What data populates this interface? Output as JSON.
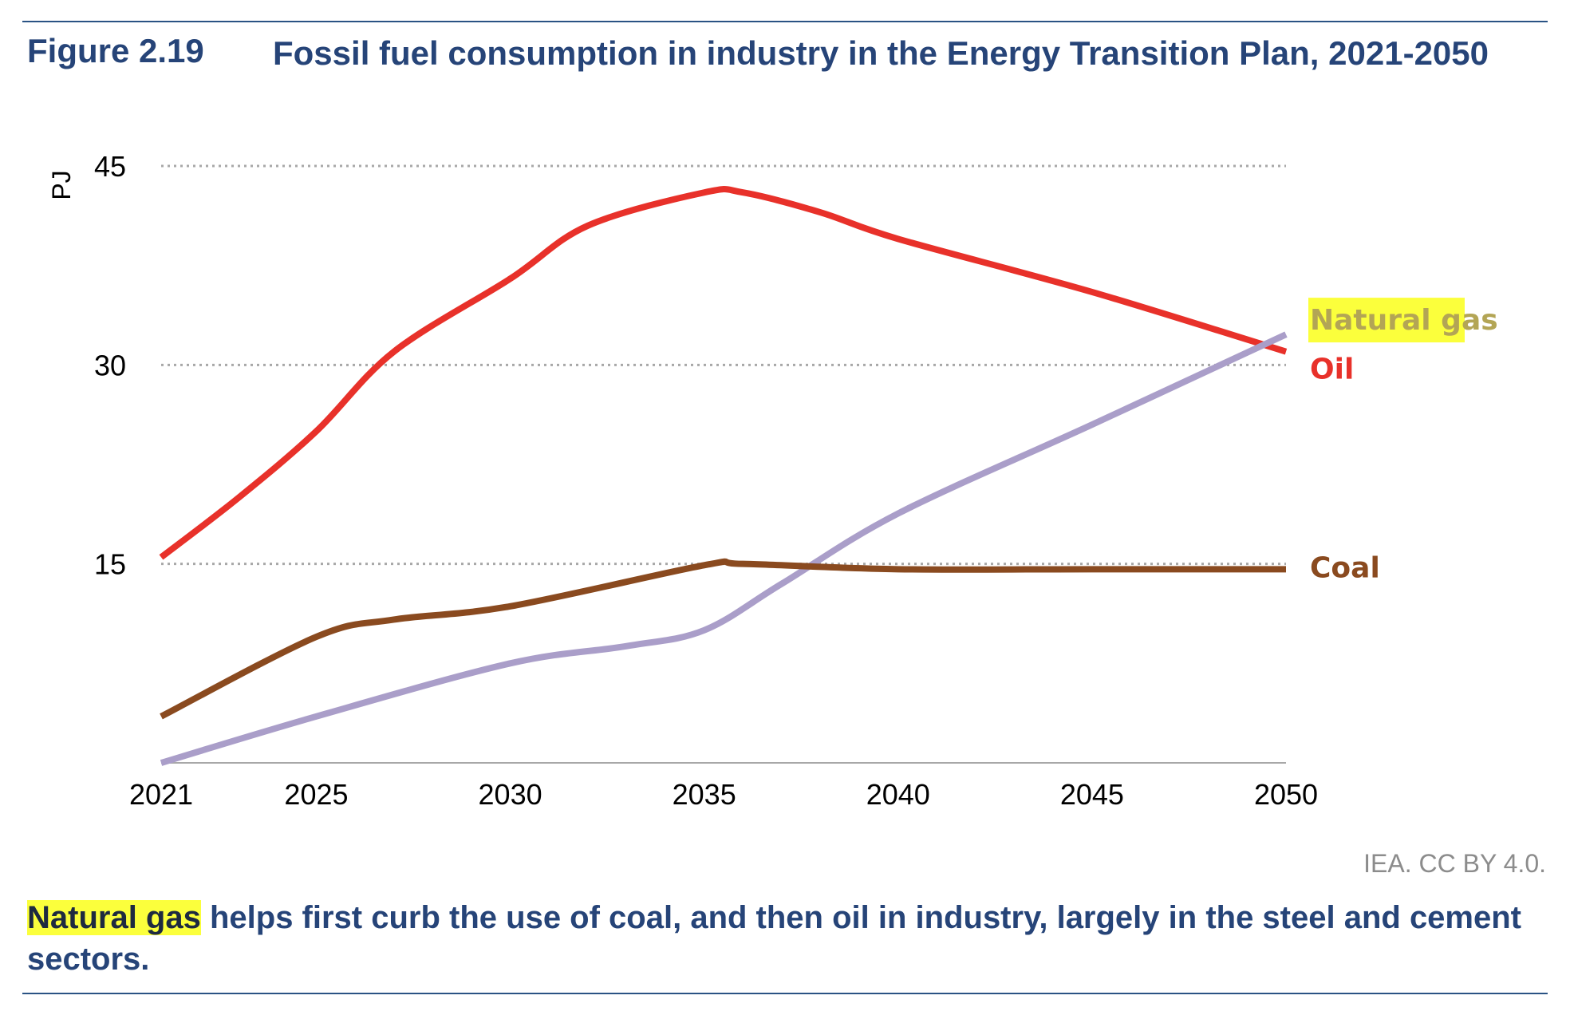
{
  "figure": {
    "number": "Figure 2.19",
    "title": "Fossil fuel consumption in industry in the Energy Transition Plan, 2021-2050",
    "source": "IEA. CC BY 4.0.",
    "caption_highlight": "Natural gas",
    "caption_rest": " helps first curb the use of coal, and then oil in industry, largely in the steel and cement sectors."
  },
  "colors": {
    "title": "#264478",
    "oil": "#e8312a",
    "coal": "#8a4a1f",
    "natural_gas": "#aa9ec9",
    "natural_gas_label": "#b3a555",
    "highlight": "#fbff3c",
    "grid": "#a8a8a8",
    "source": "#8c8c8c"
  },
  "chart_data": {
    "type": "line",
    "title": "",
    "xlabel": "",
    "ylabel": "PJ",
    "ylim": [
      0,
      45
    ],
    "yticks": [
      15,
      30,
      45
    ],
    "xticks": [
      2021,
      2025,
      2030,
      2035,
      2040,
      2045,
      2050
    ],
    "grid": "horizontal dotted",
    "legend": "inline labels at line ends (right)",
    "series": [
      {
        "name": "Oil",
        "color_key": "oil",
        "x": [
          2021,
          2023,
          2025,
          2027,
          2030,
          2032,
          2035,
          2036,
          2038,
          2040,
          2045,
          2050
        ],
        "y": [
          15.5,
          20.0,
          25.0,
          31.0,
          36.5,
          40.5,
          43.0,
          43.0,
          41.5,
          39.5,
          35.5,
          31.0
        ]
      },
      {
        "name": "Natural gas",
        "color_key": "natural_gas",
        "x": [
          2021,
          2025,
          2030,
          2033,
          2035,
          2037,
          2040,
          2045,
          2050
        ],
        "y": [
          0.0,
          3.5,
          7.5,
          8.8,
          10.0,
          13.5,
          18.8,
          25.5,
          32.3
        ]
      },
      {
        "name": "Coal",
        "color_key": "coal",
        "x": [
          2021,
          2025,
          2027,
          2030,
          2035,
          2036,
          2040,
          2045,
          2050
        ],
        "y": [
          3.5,
          9.5,
          10.8,
          11.8,
          14.9,
          15.0,
          14.6,
          14.6,
          14.6
        ]
      }
    ]
  }
}
